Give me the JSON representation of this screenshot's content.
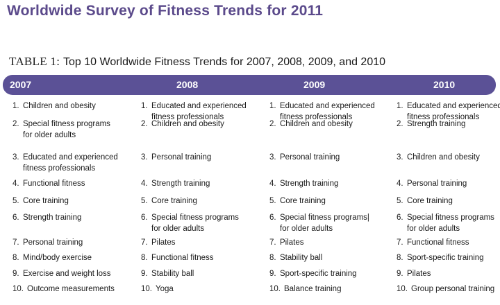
{
  "doc_title": "Worldwide Survey of Fitness Trends for 2011",
  "caption": {
    "label": "TABLE 1:",
    "text": "Top 10 Worldwide Fitness Trends for 2007, 2008, 2009, and 2010"
  },
  "columns": [
    {
      "year": "2007",
      "items": [
        {
          "num": "1.",
          "lines": [
            "Children and obesity"
          ]
        },
        {
          "num": "2.",
          "lines": [
            "Special fitness programs",
            "for older adults"
          ]
        },
        {
          "num": "3.",
          "lines": [
            "Educated and experienced",
            "fitness professionals"
          ]
        },
        {
          "num": "4.",
          "lines": [
            "Functional fitness"
          ]
        },
        {
          "num": "5.",
          "lines": [
            "Core training"
          ]
        },
        {
          "num": "6.",
          "lines": [
            "Strength training"
          ]
        },
        {
          "num": "7.",
          "lines": [
            "Personal training"
          ]
        },
        {
          "num": "8.",
          "lines": [
            "Mind/body exercise"
          ]
        },
        {
          "num": "9.",
          "lines": [
            "Exercise and weight loss"
          ]
        },
        {
          "num": "10.",
          "lines": [
            "Outcome measurements"
          ]
        }
      ]
    },
    {
      "year": "2008",
      "items": [
        {
          "num": "1.",
          "lines": [
            "Educated and experienced",
            "fitness professionals"
          ]
        },
        {
          "num": "2.",
          "lines": [
            "Children and obesity"
          ]
        },
        {
          "num": "3.",
          "lines": [
            "Personal training"
          ]
        },
        {
          "num": "4.",
          "lines": [
            "Strength training"
          ]
        },
        {
          "num": "5.",
          "lines": [
            "Core training"
          ]
        },
        {
          "num": "6.",
          "lines": [
            "Special fitness programs",
            "for older adults"
          ]
        },
        {
          "num": "7.",
          "lines": [
            "Pilates"
          ]
        },
        {
          "num": "8.",
          "lines": [
            "Functional fitness"
          ]
        },
        {
          "num": "9.",
          "lines": [
            "Stability ball"
          ]
        },
        {
          "num": "10.",
          "lines": [
            "Yoga"
          ]
        }
      ]
    },
    {
      "year": "2009",
      "items": [
        {
          "num": "1.",
          "lines": [
            "Educated and experienced",
            "fitness professionals"
          ]
        },
        {
          "num": "2.",
          "lines": [
            "Children and obesity"
          ]
        },
        {
          "num": "3.",
          "lines": [
            "Personal training"
          ]
        },
        {
          "num": "4.",
          "lines": [
            "Strength training"
          ]
        },
        {
          "num": "5.",
          "lines": [
            "Core training"
          ]
        },
        {
          "num": "6.",
          "lines": [
            "Special fitness programs|",
            "for older adults"
          ]
        },
        {
          "num": "7.",
          "lines": [
            "Pilates"
          ]
        },
        {
          "num": "8.",
          "lines": [
            "Stability ball"
          ]
        },
        {
          "num": "9.",
          "lines": [
            "Sport-specific training"
          ]
        },
        {
          "num": "10.",
          "lines": [
            "Balance training"
          ]
        }
      ]
    },
    {
      "year": "2010",
      "items": [
        {
          "num": "1.",
          "lines": [
            "Educated and experienced",
            "fitness professionals"
          ]
        },
        {
          "num": "2.",
          "lines": [
            "Strength training"
          ]
        },
        {
          "num": "3.",
          "lines": [
            "Children and obesity"
          ]
        },
        {
          "num": "4.",
          "lines": [
            "Personal training"
          ]
        },
        {
          "num": "5.",
          "lines": [
            "Core training"
          ]
        },
        {
          "num": "6.",
          "lines": [
            "Special fitness programs",
            "for older adults"
          ]
        },
        {
          "num": "7.",
          "lines": [
            "Functional fitness"
          ]
        },
        {
          "num": "8.",
          "lines": [
            "Sport-specific training"
          ]
        },
        {
          "num": "9.",
          "lines": [
            "Pilates"
          ]
        },
        {
          "num": "10.",
          "lines": [
            "Group personal training"
          ]
        }
      ]
    }
  ],
  "colors": {
    "title": "#5b4a8b",
    "header_bar": "#5b5196",
    "header_text": "#ffffff"
  }
}
